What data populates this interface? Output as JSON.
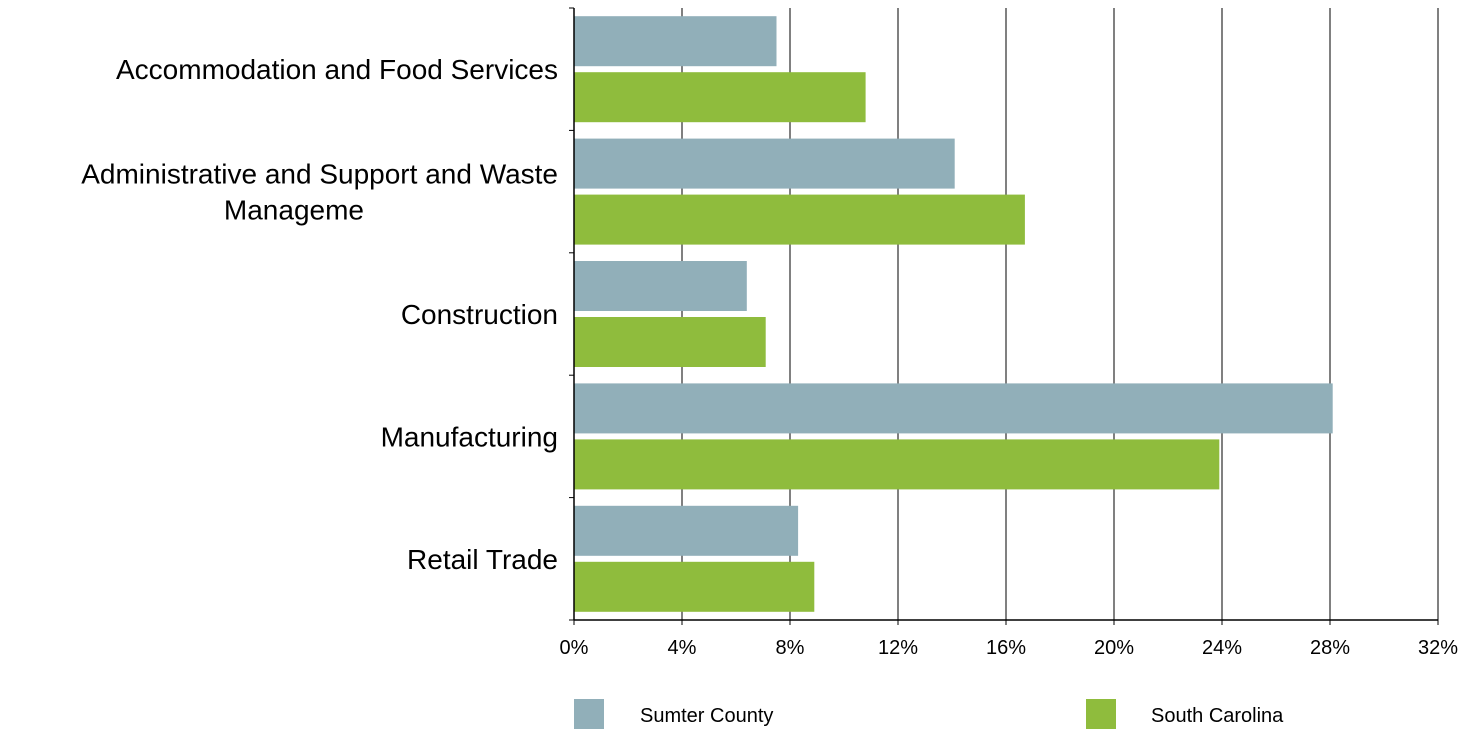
{
  "chart_data": {
    "type": "bar",
    "orientation": "horizontal",
    "categories": [
      [
        "Accommodation and Food Services"
      ],
      [
        "Administrative and Support and Waste",
        "Manageme"
      ],
      [
        "Construction"
      ],
      [
        "Manufacturing"
      ],
      [
        "Retail Trade"
      ]
    ],
    "series": [
      {
        "name": "Sumter County",
        "color": "#91afb9",
        "values": [
          7.5,
          14.1,
          6.4,
          28.1,
          8.3
        ]
      },
      {
        "name": "South Carolina",
        "color": "#8fbc3d",
        "values": [
          10.8,
          16.7,
          7.1,
          23.9,
          8.9
        ]
      }
    ],
    "xlim": [
      0,
      32
    ],
    "x_ticks": [
      0,
      4,
      8,
      12,
      16,
      20,
      24,
      28,
      32
    ],
    "tick_format": "percent",
    "grid": "vertical",
    "legend": "bottom"
  }
}
